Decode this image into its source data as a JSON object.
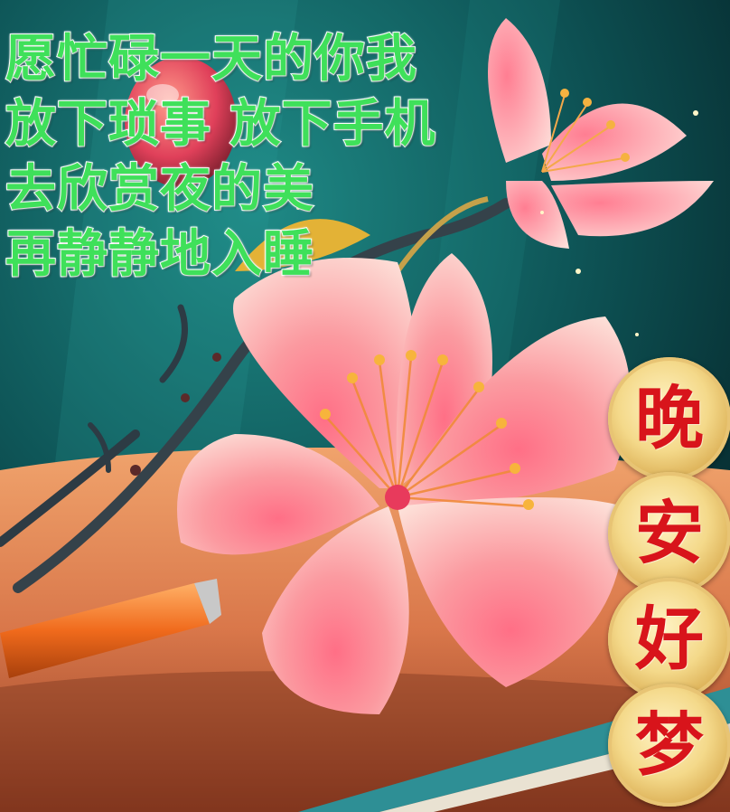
{
  "poem": {
    "lines": [
      "愿忙碌一天的你我",
      "放下琐事 放下手机",
      "去欣赏夜的美",
      "再静静地入睡"
    ]
  },
  "greeting": {
    "characters": [
      "晚",
      "安",
      "好",
      "梦"
    ]
  },
  "colors": {
    "poem_text": "#3fe05a",
    "poem_outline": "#ffffff",
    "greeting_text": "#d8141b",
    "medal_gold": "#e8c474",
    "background_teal": "#0f5a5c",
    "blossom_pink": "#f7a7a3",
    "table_orange": "#d9774a"
  }
}
